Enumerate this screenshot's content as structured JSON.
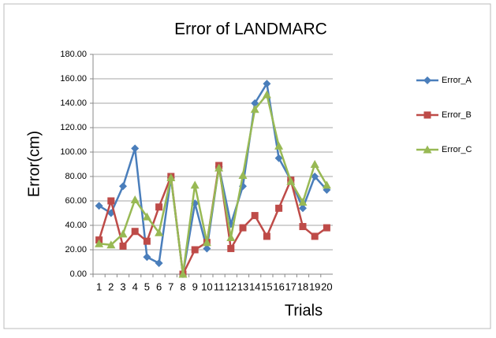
{
  "chart_data": {
    "type": "line",
    "title": "Error of LANDMARC",
    "x_label": "Trials",
    "y_label": "Error(cm)",
    "categories": [
      "1",
      "2",
      "3",
      "4",
      "5",
      "6",
      "7",
      "8",
      "9",
      "10",
      "11",
      "12",
      "13",
      "14",
      "15",
      "16",
      "17",
      "18",
      "19",
      "20"
    ],
    "series": [
      {
        "name": "Error_A",
        "color": "#4a7ebb",
        "marker": "diamond",
        "values": [
          56,
          50,
          72,
          103,
          14,
          9,
          79,
          0,
          58,
          21,
          88,
          41,
          72,
          140,
          156,
          95,
          77,
          54,
          80,
          69
        ]
      },
      {
        "name": "Error_B",
        "color": "#be4b48",
        "marker": "square",
        "values": [
          28,
          60,
          23,
          35,
          27,
          55,
          80,
          0,
          20,
          26,
          89,
          21,
          38,
          48,
          31,
          54,
          77,
          39,
          31,
          38
        ]
      },
      {
        "name": "Error_C",
        "color": "#98b954",
        "marker": "triangle",
        "values": [
          25,
          24,
          33,
          61,
          47,
          34,
          79,
          0,
          73,
          26,
          87,
          30,
          81,
          135,
          147,
          105,
          76,
          59,
          90,
          73
        ]
      }
    ],
    "ylim": [
      0,
      180
    ],
    "yticks": [
      {
        "value": 0,
        "label": "0.00"
      },
      {
        "value": 20,
        "label": "20.00"
      },
      {
        "value": 40,
        "label": "40.00"
      },
      {
        "value": 60,
        "label": "60.00"
      },
      {
        "value": 80,
        "label": "80.00"
      },
      {
        "value": 100,
        "label": "100.00"
      },
      {
        "value": 120,
        "label": "120.00"
      },
      {
        "value": 140,
        "label": "140.00"
      },
      {
        "value": 160,
        "label": "160.00"
      },
      {
        "value": 180,
        "label": "180.00"
      }
    ],
    "grid": true,
    "legend": "right"
  }
}
